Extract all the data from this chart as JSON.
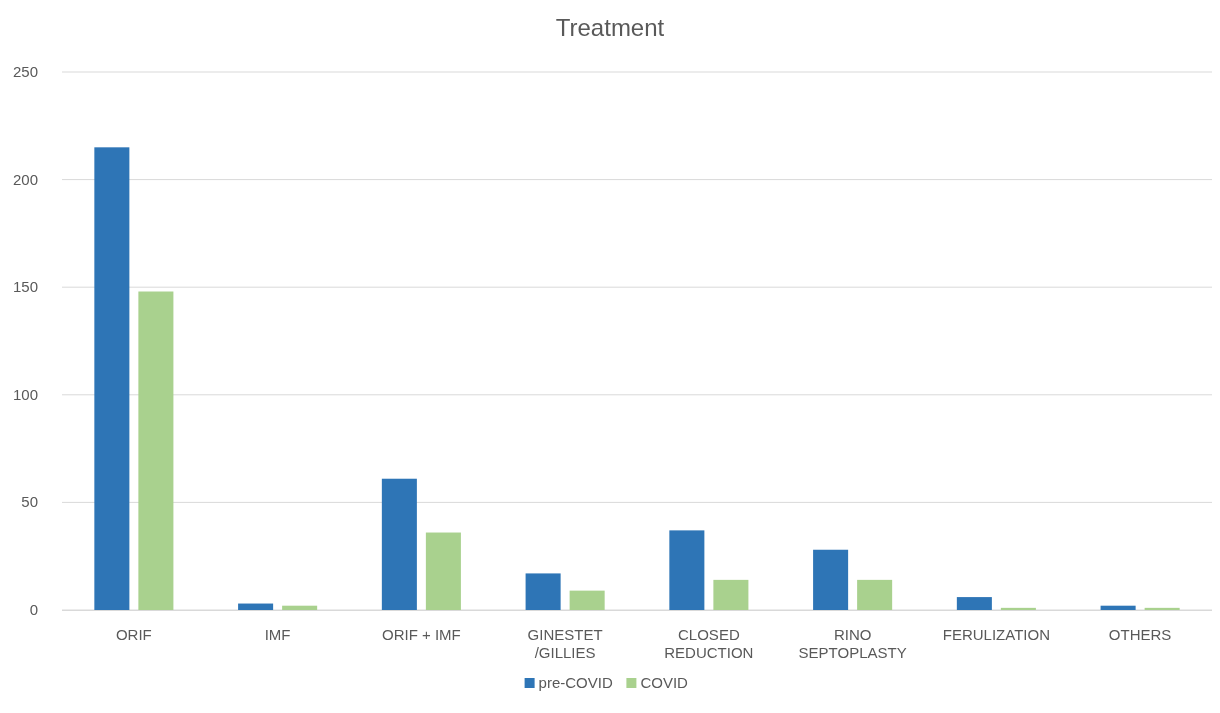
{
  "chart_data": {
    "type": "bar",
    "title": "Treatment",
    "categories": [
      "ORIF",
      "IMF",
      "ORIF + IMF",
      "GINESTET\n/GILLIES",
      "CLOSED\nREDUCTION",
      "RINO\nSEPTOPLASTY",
      "FERULIZATION",
      "OTHERS"
    ],
    "series": [
      {
        "name": "pre-COVID",
        "color": "#2e75b6",
        "values": [
          215,
          3,
          61,
          17,
          37,
          28,
          6,
          2
        ]
      },
      {
        "name": "COVID",
        "color": "#a9d18e",
        "values": [
          148,
          2,
          36,
          9,
          14,
          14,
          1,
          1
        ]
      }
    ],
    "ylim": [
      0,
      250
    ],
    "yticks": [
      0,
      50,
      100,
      150,
      200,
      250
    ],
    "grid": "y",
    "legend": "bottom"
  }
}
